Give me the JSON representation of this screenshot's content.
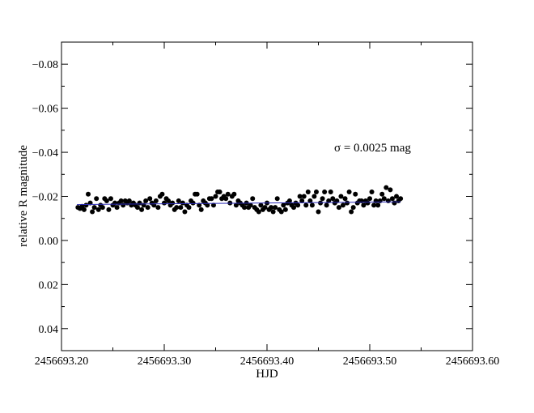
{
  "chart_data": {
    "type": "scatter",
    "title": "",
    "xlabel": "HJD",
    "ylabel": "relative R magnitude",
    "xlim": [
      2456693.2,
      2456693.6
    ],
    "ylim": [
      0.05,
      -0.09
    ],
    "y_inverted": true,
    "grid": false,
    "legend": "none",
    "x_ticks": [
      2456693.2,
      2456693.3,
      2456693.4,
      2456693.5,
      2456693.6
    ],
    "x_tick_labels": [
      "2456693.20",
      "2456693.30",
      "2456693.40",
      "2456693.50",
      "2456693.60"
    ],
    "y_ticks": [
      -0.08,
      -0.06,
      -0.04,
      -0.02,
      0.0,
      0.02,
      0.04
    ],
    "y_tick_labels": [
      "−0.08",
      "−0.06",
      "−0.04",
      "−0.02",
      "0.00",
      "0.02",
      "0.04"
    ],
    "annotation": "σ = 0.0025 mag",
    "colors": {
      "points": "#000000",
      "fit_line": "#2b2bb5",
      "axes": "#000000"
    },
    "fit_line": {
      "x": [
        2456693.215,
        2456693.53
      ],
      "y": [
        -0.0163,
        -0.0175
      ]
    },
    "series": [
      {
        "x": [
          2456693.216,
          2456693.218,
          2456693.22,
          2456693.222,
          2456693.224,
          2456693.226,
          2456693.228,
          2456693.23,
          2456693.232,
          2456693.234,
          2456693.236,
          2456693.238,
          2456693.24,
          2456693.242,
          2456693.244,
          2456693.246,
          2456693.248,
          2456693.25,
          2456693.252,
          2456693.254,
          2456693.256,
          2456693.258,
          2456693.26,
          2456693.262,
          2456693.264,
          2456693.266,
          2456693.268,
          2456693.27,
          2456693.272,
          2456693.274,
          2456693.276,
          2456693.278,
          2456693.28,
          2456693.282,
          2456693.284,
          2456693.286,
          2456693.288,
          2456693.29,
          2456693.292,
          2456693.294,
          2456693.296,
          2456693.298,
          2456693.3,
          2456693.302,
          2456693.304,
          2456693.306,
          2456693.308,
          2456693.31,
          2456693.312,
          2456693.314,
          2456693.316,
          2456693.318,
          2456693.32,
          2456693.322,
          2456693.324,
          2456693.326,
          2456693.328,
          2456693.33,
          2456693.332,
          2456693.334,
          2456693.336,
          2456693.338,
          2456693.34,
          2456693.342,
          2456693.344,
          2456693.346,
          2456693.348,
          2456693.35,
          2456693.352,
          2456693.354,
          2456693.356,
          2456693.358,
          2456693.36,
          2456693.362,
          2456693.364,
          2456693.366,
          2456693.368,
          2456693.37,
          2456693.372,
          2456693.374,
          2456693.376,
          2456693.378,
          2456693.38,
          2456693.382,
          2456693.384,
          2456693.386,
          2456693.388,
          2456693.39,
          2456693.392,
          2456693.394,
          2456693.396,
          2456693.398,
          2456693.4,
          2456693.402,
          2456693.404,
          2456693.406,
          2456693.408,
          2456693.41,
          2456693.412,
          2456693.414,
          2456693.416,
          2456693.418,
          2456693.42,
          2456693.422,
          2456693.424,
          2456693.426,
          2456693.428,
          2456693.43,
          2456693.432,
          2456693.434,
          2456693.436,
          2456693.438,
          2456693.44,
          2456693.442,
          2456693.444,
          2456693.446,
          2456693.448,
          2456693.45,
          2456693.452,
          2456693.454,
          2456693.456,
          2456693.458,
          2456693.46,
          2456693.462,
          2456693.464,
          2456693.466,
          2456693.468,
          2456693.47,
          2456693.472,
          2456693.474,
          2456693.476,
          2456693.478,
          2456693.48,
          2456693.482,
          2456693.484,
          2456693.486,
          2456693.488,
          2456693.49,
          2456693.492,
          2456693.494,
          2456693.496,
          2456693.498,
          2456693.5,
          2456693.502,
          2456693.504,
          2456693.506,
          2456693.508,
          2456693.51,
          2456693.512,
          2456693.514,
          2456693.516,
          2456693.518,
          2456693.52,
          2456693.522,
          2456693.524,
          2456693.526,
          2456693.528,
          2456693.53
        ],
        "y": [
          -0.015,
          -0.0145,
          -0.0155,
          -0.014,
          -0.016,
          -0.021,
          -0.017,
          -0.013,
          -0.015,
          -0.019,
          -0.014,
          -0.016,
          -0.015,
          -0.019,
          -0.018,
          -0.014,
          -0.019,
          -0.016,
          -0.017,
          -0.015,
          -0.017,
          -0.018,
          -0.016,
          -0.018,
          -0.017,
          -0.018,
          -0.016,
          -0.017,
          -0.016,
          -0.015,
          -0.017,
          -0.014,
          -0.016,
          -0.018,
          -0.015,
          -0.019,
          -0.017,
          -0.016,
          -0.018,
          -0.015,
          -0.02,
          -0.021,
          -0.017,
          -0.019,
          -0.018,
          -0.016,
          -0.017,
          -0.014,
          -0.015,
          -0.018,
          -0.015,
          -0.017,
          -0.013,
          -0.016,
          -0.015,
          -0.018,
          -0.017,
          -0.021,
          -0.021,
          -0.016,
          -0.014,
          -0.018,
          -0.017,
          -0.016,
          -0.019,
          -0.019,
          -0.016,
          -0.02,
          -0.022,
          -0.022,
          -0.019,
          -0.02,
          -0.019,
          -0.021,
          -0.017,
          -0.02,
          -0.021,
          -0.016,
          -0.018,
          -0.017,
          -0.016,
          -0.015,
          -0.017,
          -0.015,
          -0.016,
          -0.019,
          -0.015,
          -0.014,
          -0.013,
          -0.016,
          -0.014,
          -0.015,
          -0.017,
          -0.014,
          -0.015,
          -0.013,
          -0.015,
          -0.019,
          -0.014,
          -0.013,
          -0.016,
          -0.014,
          -0.017,
          -0.018,
          -0.016,
          -0.015,
          -0.017,
          -0.016,
          -0.02,
          -0.018,
          -0.02,
          -0.016,
          -0.022,
          -0.018,
          -0.016,
          -0.02,
          -0.022,
          -0.013,
          -0.017,
          -0.019,
          -0.022,
          -0.016,
          -0.018,
          -0.022,
          -0.019,
          -0.017,
          -0.018,
          -0.015,
          -0.02,
          -0.016,
          -0.019,
          -0.017,
          -0.022,
          -0.013,
          -0.015,
          -0.021,
          -0.017,
          -0.018,
          -0.018,
          -0.016,
          -0.018,
          -0.017,
          -0.019,
          -0.022,
          -0.016,
          -0.018,
          -0.016,
          -0.018,
          -0.021,
          -0.019,
          -0.024,
          -0.018,
          -0.023,
          -0.019,
          -0.017,
          -0.02,
          -0.018,
          -0.019
        ]
      }
    ]
  }
}
